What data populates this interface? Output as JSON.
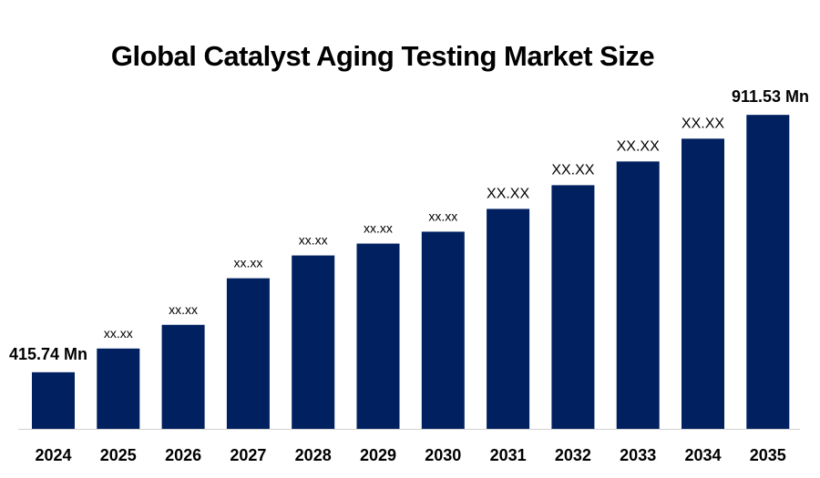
{
  "chart_data": {
    "type": "bar",
    "title": "Global Catalyst Aging Testing Market Size",
    "xlabel": "",
    "ylabel": "",
    "categories": [
      "2024",
      "2025",
      "2026",
      "2027",
      "2028",
      "2029",
      "2030",
      "2031",
      "2032",
      "2033",
      "2034",
      "2035"
    ],
    "values": [
      415.74,
      461.4,
      507.1,
      596.8,
      640.7,
      663.6,
      686.5,
      730.4,
      776.1,
      821.8,
      865.7,
      911.53
    ],
    "data_labels": [
      "415.74 Mn",
      "xx.xx",
      "xx.xx",
      "xx.xx",
      "xx.xx",
      "xx.xx",
      "xx.xx",
      "XX.XX",
      "XX.XX",
      "XX.XX",
      "XX.XX",
      "911.53 Mn"
    ],
    "ylim": [
      306.7,
      975
    ],
    "grid": false,
    "legend": "none",
    "bar_color": "#002060",
    "baseline_color": "#d0d0d0"
  }
}
